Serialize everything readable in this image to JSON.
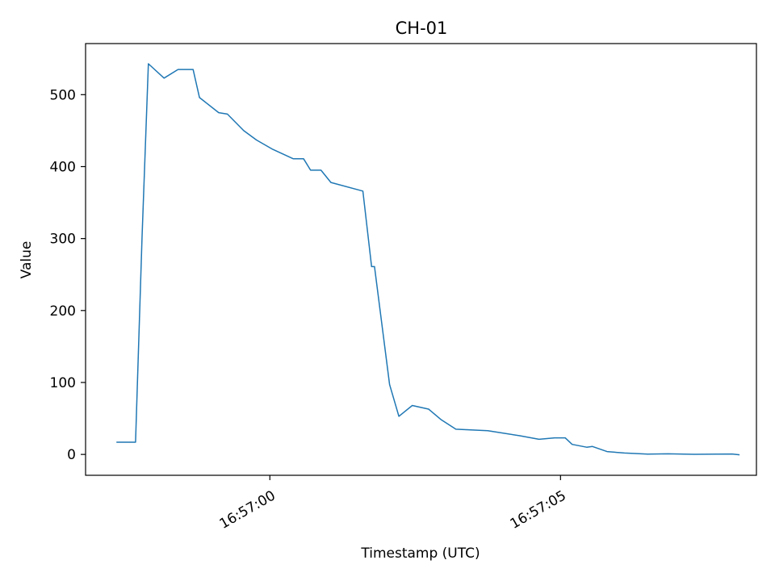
{
  "chart_data": {
    "type": "line",
    "title": "CH-01",
    "xlabel": "Timestamp (UTC)",
    "ylabel": "Value",
    "x_unit": "seconds relative to 16:57:00",
    "xlim": [
      -3.17,
      8.37
    ],
    "ylim": [
      -29,
      571
    ],
    "xticks": [
      {
        "value": 0,
        "label": "16:57:00"
      },
      {
        "value": 5,
        "label": "16:57:05"
      }
    ],
    "yticks": [
      {
        "value": 0,
        "label": "0"
      },
      {
        "value": 100,
        "label": "100"
      },
      {
        "value": 200,
        "label": "200"
      },
      {
        "value": 300,
        "label": "300"
      },
      {
        "value": 400,
        "label": "400"
      },
      {
        "value": 500,
        "label": "500"
      }
    ],
    "line_color": "#1f77b4",
    "series": [
      {
        "name": "CH-01",
        "x": [
          -2.64,
          -2.31,
          -2.2,
          -2.09,
          -1.82,
          -1.58,
          -1.32,
          -1.21,
          -0.88,
          -0.73,
          -0.45,
          -0.23,
          0.05,
          0.4,
          0.58,
          0.7,
          0.88,
          1.05,
          1.6,
          1.75,
          1.8,
          2.06,
          2.22,
          2.45,
          2.73,
          2.95,
          3.2,
          3.75,
          4.3,
          4.63,
          4.9,
          5.08,
          5.2,
          5.45,
          5.55,
          5.8,
          6.1,
          6.5,
          6.85,
          7.3,
          7.7,
          7.95,
          8.08
        ],
        "y": [
          17,
          17,
          300,
          543,
          523,
          535,
          535,
          496,
          475,
          473,
          450,
          437,
          424,
          411,
          411,
          395,
          395,
          378,
          366,
          261,
          261,
          97,
          53,
          68,
          63,
          48,
          35,
          33,
          26,
          21,
          23,
          23,
          14,
          10,
          11,
          4,
          2,
          0.5,
          0.8,
          0.2,
          0.5,
          0.6,
          -0.5
        ]
      }
    ]
  }
}
